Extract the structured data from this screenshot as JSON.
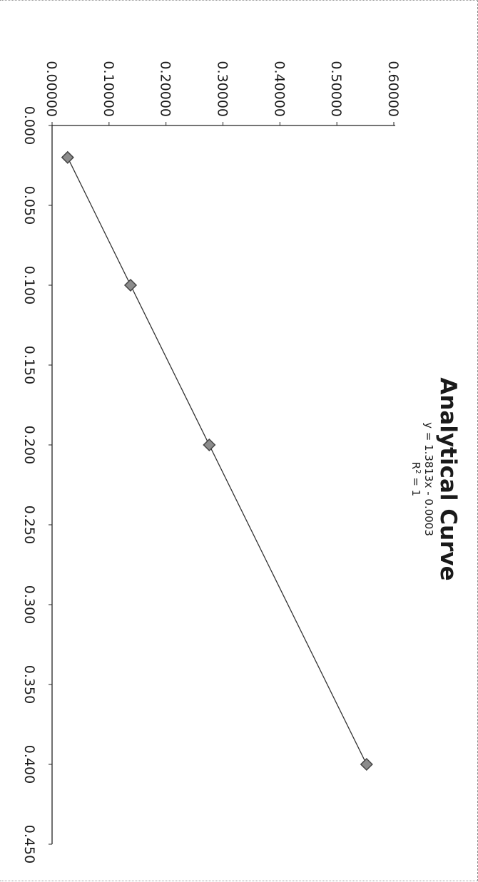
{
  "chart_data": {
    "type": "scatter",
    "title": "Analytical Curve",
    "trendline": {
      "equation": "y = 1.3813x - 0.0003",
      "r2_prefix": "R",
      "r2_sup": "2",
      "r2_suffix": " = 1",
      "slope": 1.3813,
      "intercept": -0.0003
    },
    "series": [
      {
        "x": [
          0.02,
          0.1,
          0.2,
          0.4
        ],
        "y": [
          0.0273,
          0.1378,
          0.276,
          0.5522
        ],
        "marker": "diamond",
        "color": "#444444"
      }
    ],
    "x_ticks": [
      "0.000",
      "0.050",
      "0.100",
      "0.150",
      "0.200",
      "0.250",
      "0.300",
      "0.350",
      "0.400",
      "0.450"
    ],
    "y_ticks": [
      "0.00000",
      "0.10000",
      "0.20000",
      "0.30000",
      "0.40000",
      "0.50000",
      "0.60000"
    ],
    "xlim": [
      0,
      0.45
    ],
    "ylim": [
      0,
      0.6
    ],
    "xlabel": "",
    "ylabel": "",
    "grid": false,
    "orientation": "rotated 90° clockwise",
    "line_color": "#333333"
  }
}
